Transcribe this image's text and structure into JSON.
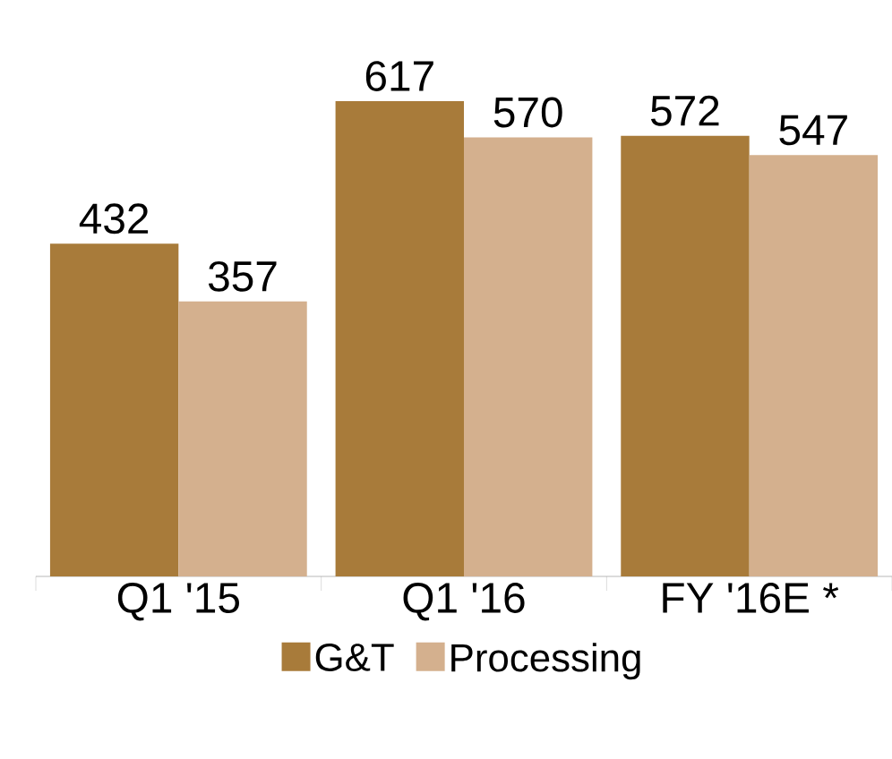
{
  "chart_data": {
    "type": "bar",
    "categories": [
      "Q1 '15",
      "Q1 '16",
      "FY '16E *"
    ],
    "series": [
      {
        "name": "G&T",
        "color": "#a87b3a",
        "values": [
          432,
          617,
          572
        ]
      },
      {
        "name": "Processing",
        "color": "#d4b08e",
        "values": [
          357,
          570,
          547
        ]
      }
    ],
    "data_labels": true,
    "legend": "bottom"
  }
}
